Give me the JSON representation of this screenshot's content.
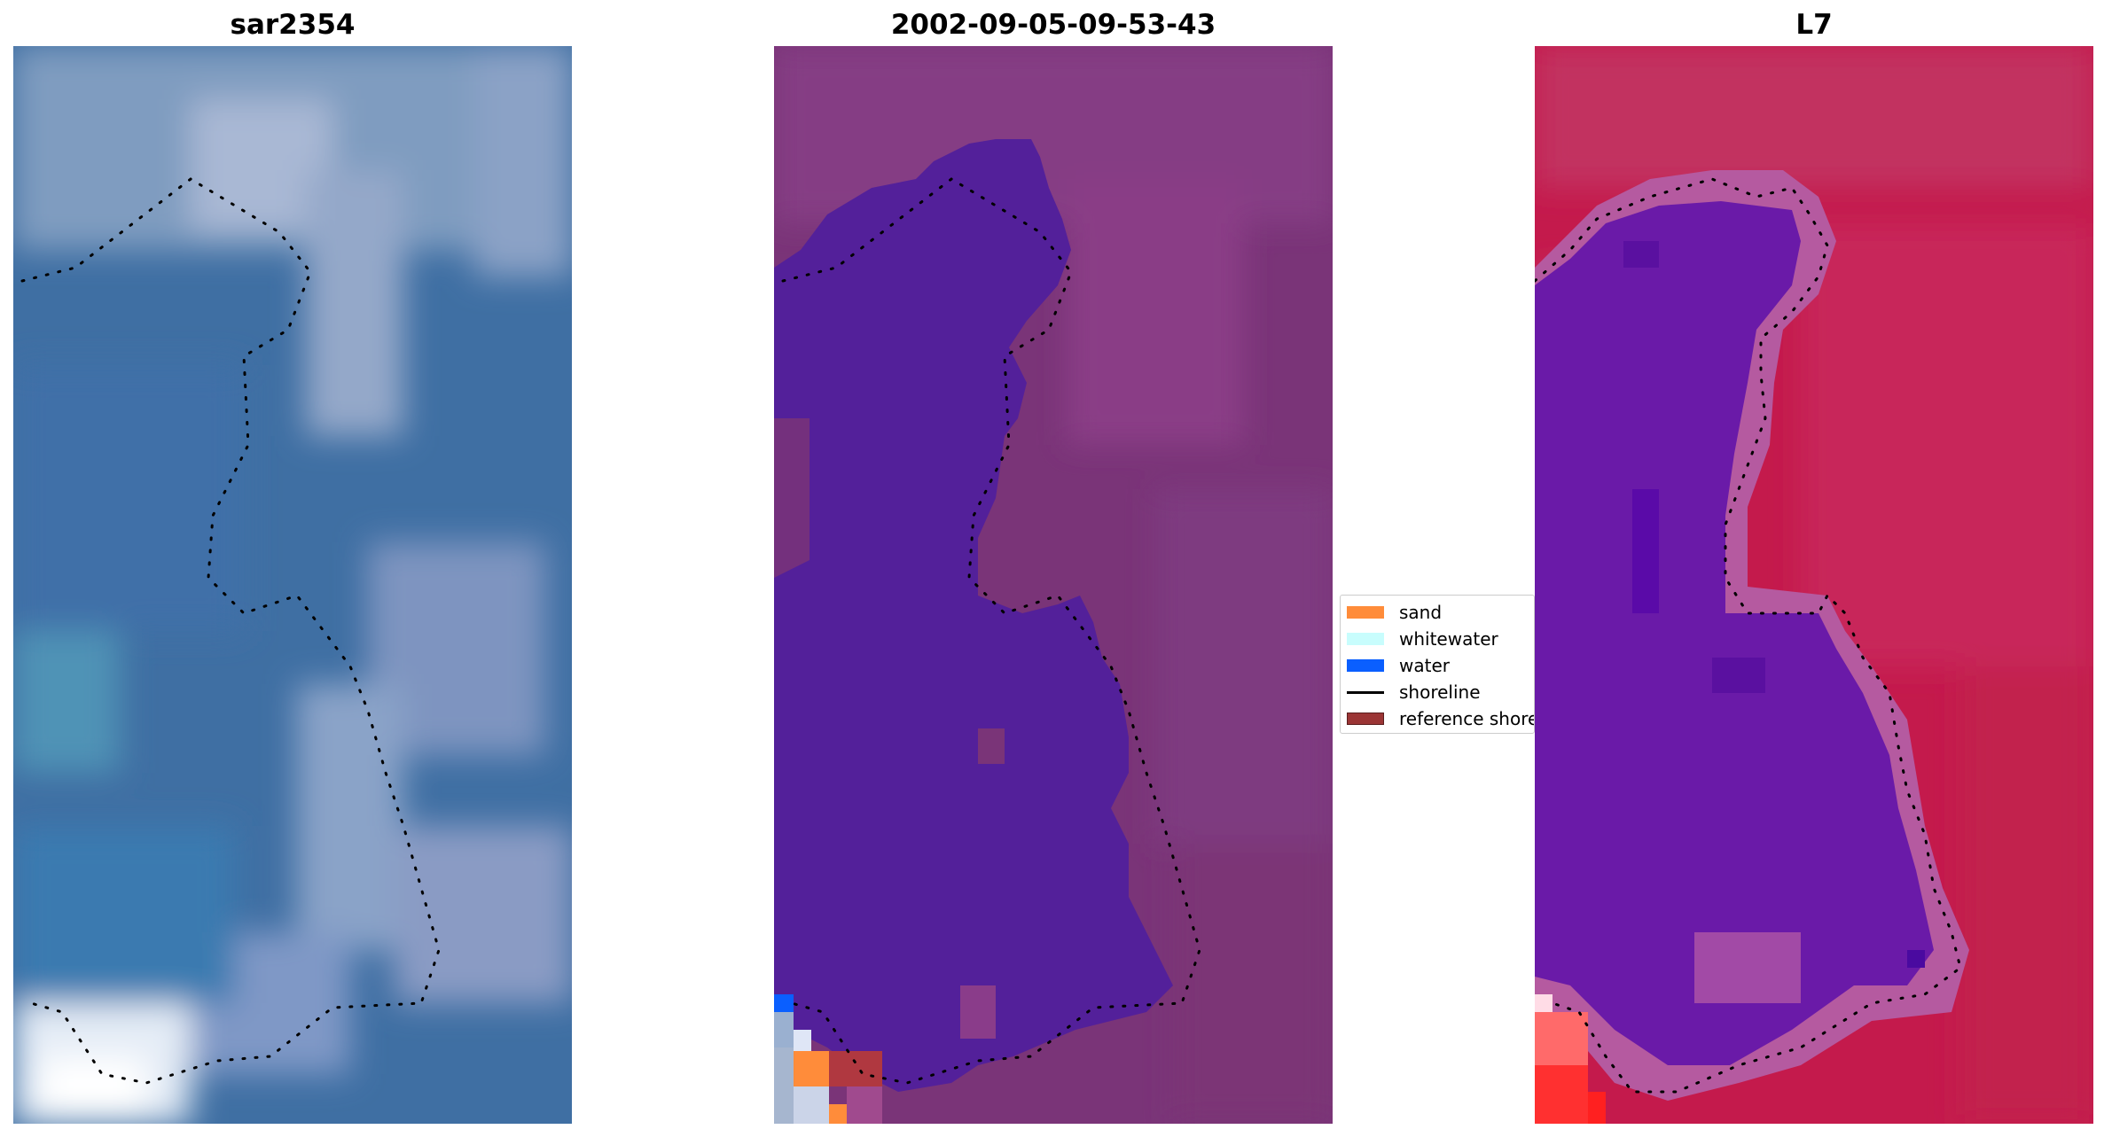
{
  "panels": [
    {
      "title": "sar2354",
      "image": "false-colour RGB satellite image tile, blue water with pale surf and sand patches, dotted shoreline"
    },
    {
      "title": "2002-09-05-09-53-43",
      "image": "classified image tile, purple water region on magenta background with dotted shoreline, small sand and water pixels at lower-left"
    },
    {
      "title": "L7",
      "image": "MNDWI-style index tile, purple water region on crimson background with dotted shoreline"
    }
  ],
  "legend": {
    "items": [
      {
        "label": "sand",
        "color": "#ff8c3a",
        "kind": "patch"
      },
      {
        "label": "whitewater",
        "color": "#c8fdfd",
        "kind": "patch"
      },
      {
        "label": "water",
        "color": "#0a5fff",
        "kind": "patch"
      },
      {
        "label": "shoreline",
        "color": "#000000",
        "kind": "line"
      },
      {
        "label": "reference shoreline",
        "color": "#9b3535",
        "kind": "patch"
      }
    ]
  },
  "colors": {
    "sar_water": "#3a6aa0",
    "sar_surf": "#c8d4e6",
    "class_bg": "#7a3478",
    "class_water": "#53209a",
    "index_bg": "#c41a4c",
    "index_water": "#6a1aa8",
    "shoreline_dots": "#000000"
  }
}
